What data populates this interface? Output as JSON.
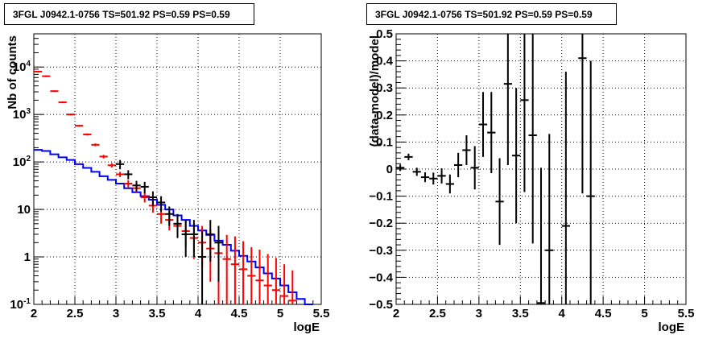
{
  "chart_data": [
    {
      "type": "scatter",
      "title": "3FGL J0942.1-0756 TS=501.92 PS=0.59 PS=0.59",
      "xlabel": "logE",
      "ylabel": "Nb of counts",
      "xlim": [
        2,
        5.5
      ],
      "ylim": [
        0.1,
        50000
      ],
      "yscale": "log",
      "grid": true,
      "x_ticks": [
        "2",
        "2.5",
        "3",
        "3.5",
        "4",
        "4.5",
        "5",
        "5.5"
      ],
      "y_ticks": [
        "10^-1",
        "1",
        "10",
        "10^2",
        "10^3",
        "10^4"
      ],
      "series": [
        {
          "name": "",
          "style": "histogram",
          "color": "#0000ff",
          "bins": [
            2.0,
            2.1,
            2.2,
            2.3,
            2.4,
            2.5,
            2.6,
            2.7,
            2.8,
            2.9,
            3.0,
            3.1,
            3.2,
            3.3,
            3.4,
            3.5,
            3.6,
            3.7,
            3.8,
            3.9,
            4.0,
            4.1,
            4.2,
            4.3,
            4.4,
            4.5,
            4.6,
            4.7,
            4.8,
            4.9,
            5.0,
            5.1,
            5.2,
            5.3
          ],
          "values": [
            180,
            170,
            145,
            125,
            110,
            90,
            75,
            62,
            50,
            42,
            35,
            28,
            23,
            19,
            16,
            12.5,
            10,
            7.5,
            6,
            4.5,
            3.6,
            2.9,
            2.2,
            1.8,
            1.35,
            1.05,
            0.8,
            0.6,
            0.45,
            0.35,
            0.25,
            0.18,
            0.13,
            0.1
          ]
        },
        {
          "name": "",
          "style": "errorbar",
          "color": "#ff0000",
          "x": [
            2.05,
            2.15,
            2.25,
            2.35,
            2.45,
            2.55,
            2.65,
            2.75,
            2.85,
            2.95,
            3.05,
            3.15,
            3.25,
            3.35,
            3.45,
            3.55,
            3.65,
            3.75,
            3.85,
            3.95,
            4.05,
            4.15,
            4.25,
            4.35,
            4.45,
            4.55,
            4.65,
            4.75,
            4.85,
            4.95,
            5.05,
            5.15
          ],
          "y": [
            8000,
            6400,
            3100,
            1800,
            1000,
            580,
            380,
            230,
            130,
            85,
            55,
            35,
            28,
            18,
            12,
            8,
            6,
            4.5,
            3.5,
            2.5,
            2.0,
            1.5,
            1.2,
            0.9,
            0.7,
            0.55,
            0.4,
            0.32,
            0.25,
            0.2,
            0.15,
            0.12
          ],
          "err_low": [
            350,
            280,
            120,
            70,
            40,
            25,
            20,
            15,
            11,
            9,
            7,
            6,
            5,
            4,
            3.5,
            3,
            2.4,
            2.0,
            1.9,
            1.6,
            1.4,
            1.2,
            1.1,
            0.8,
            0.6,
            0.45,
            0.3,
            0.22,
            0.15,
            0.1,
            0.05,
            0.02
          ],
          "err_high": [
            350,
            280,
            120,
            70,
            40,
            25,
            20,
            15,
            11,
            9,
            7,
            6,
            5,
            4.5,
            4,
            3.2,
            3,
            2.5,
            2.5,
            2.5,
            2.5,
            2.3,
            2.3,
            2,
            2,
            1.6,
            1.2,
            1.1,
            0.9,
            0.75,
            0.55,
            0.4
          ]
        },
        {
          "name": "",
          "style": "errorbar",
          "color": "#000000",
          "x": [
            3.05,
            3.15,
            3.25,
            3.35,
            3.45,
            3.55,
            3.65,
            3.75,
            3.85,
            3.95,
            4.05,
            4.15,
            4.25
          ],
          "y": [
            90,
            55,
            32,
            30,
            18,
            14,
            8,
            5,
            3,
            3,
            1,
            3,
            2
          ],
          "err_low": [
            20,
            12,
            8,
            8,
            6,
            5,
            3.5,
            2.5,
            2,
            2,
            0.9,
            2.2,
            1.7
          ],
          "err_high": [
            20,
            12,
            8,
            8,
            6,
            5,
            3.5,
            3,
            3,
            3,
            2.5,
            3,
            2.5
          ]
        }
      ]
    },
    {
      "type": "scatter",
      "title": "3FGL J0942.1-0756 TS=501.92 PS=0.59 PS=0.59",
      "xlabel": "logE",
      "ylabel": "(data-model)/model",
      "xlim": [
        2,
        5.5
      ],
      "ylim": [
        -0.5,
        0.5
      ],
      "grid": true,
      "x_ticks": [
        "2",
        "2.5",
        "3",
        "3.5",
        "4",
        "4.5",
        "5",
        "5.5"
      ],
      "y_ticks": [
        "-0.5",
        "-0.4",
        "-0.3",
        "-0.2",
        "-0.1",
        "0",
        "0.1",
        "0.2",
        "0.3",
        "0.4",
        "0.5"
      ],
      "series": [
        {
          "name": "",
          "style": "errorbar",
          "color": "#000000",
          "x": [
            2.05,
            2.15,
            2.25,
            2.35,
            2.45,
            2.55,
            2.65,
            2.75,
            2.85,
            2.95,
            3.05,
            3.15,
            3.25,
            3.35,
            3.45,
            3.55,
            3.65,
            3.75,
            3.85,
            4.05,
            4.25,
            4.35
          ],
          "y": [
            0.005,
            0.045,
            -0.01,
            -0.03,
            -0.035,
            -0.025,
            -0.055,
            0.015,
            0.07,
            0.005,
            0.165,
            0.135,
            -0.12,
            0.315,
            0.05,
            0.255,
            0.125,
            -0.495,
            -0.3,
            -0.21,
            0.41,
            -0.1
          ],
          "err": [
            0.012,
            0.012,
            0.015,
            0.018,
            0.022,
            0.028,
            0.035,
            0.045,
            0.055,
            0.08,
            0.12,
            0.15,
            0.16,
            0.3,
            0.25,
            0.34,
            0.4,
            0.5,
            0.43,
            0.57,
            0.5,
            0.5
          ]
        }
      ]
    }
  ]
}
